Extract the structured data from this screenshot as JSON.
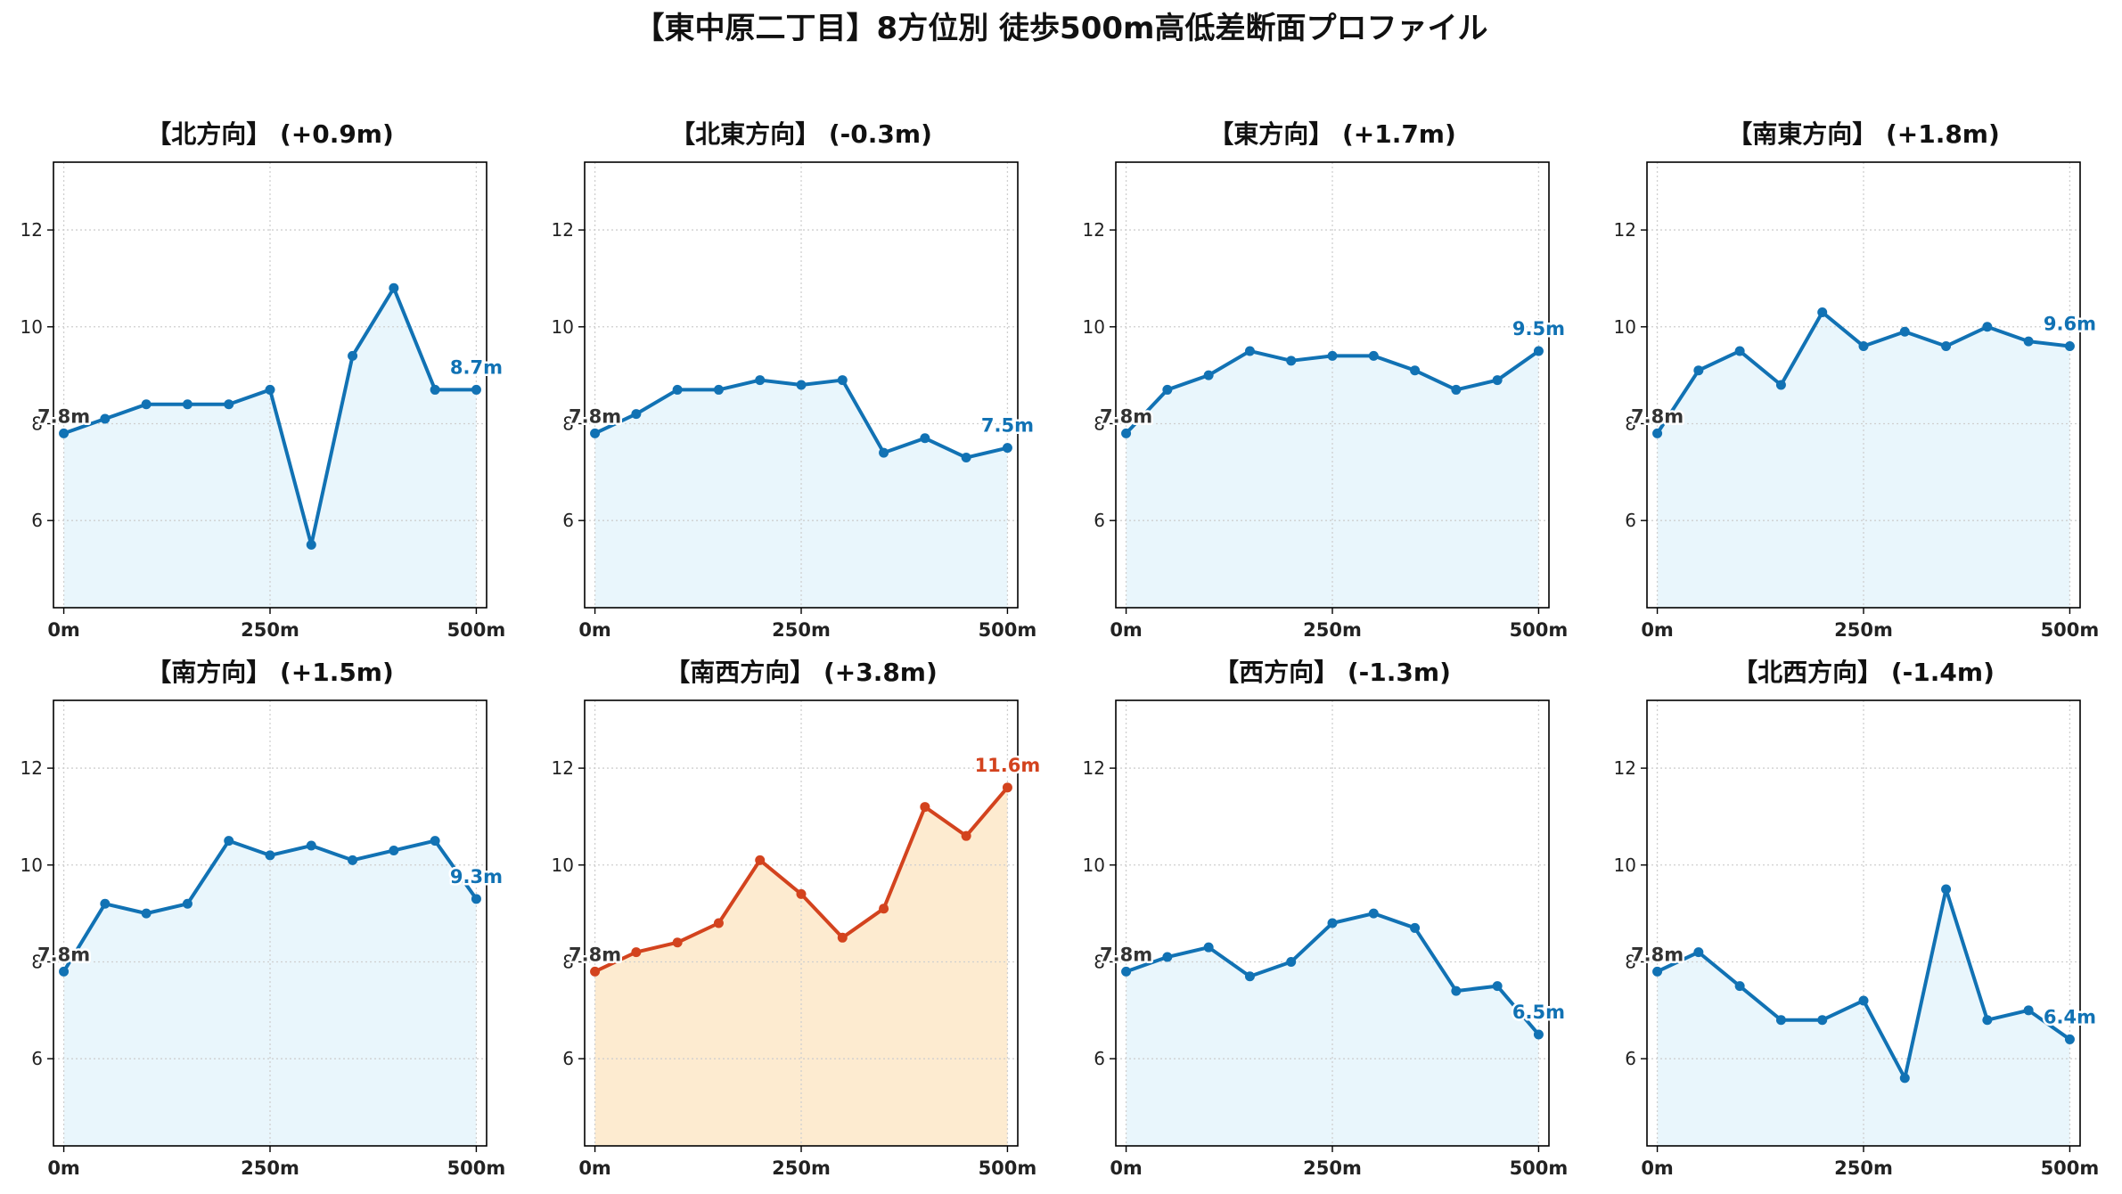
{
  "suptitle": "【東中原二丁目】8方位別 徒歩500m高低差断面プロファイル",
  "colors": {
    "line": "#1172b4",
    "fill": "#e9f6fc",
    "highlight_line": "#d3431e",
    "highlight_fill": "#fdebd0",
    "grid": "#cfcfcf",
    "start_label": "#333333"
  },
  "chart_data": [
    {
      "type": "area",
      "title": "【北方向】 (+0.9m)",
      "x": [
        0,
        50,
        100,
        150,
        200,
        250,
        300,
        350,
        400,
        450,
        500
      ],
      "values": [
        7.8,
        8.1,
        8.4,
        8.4,
        8.4,
        8.7,
        5.5,
        9.4,
        10.8,
        8.7,
        8.7
      ],
      "start_label": "7.8m",
      "end_label": "8.7m",
      "ylim": [
        4.2,
        13.4
      ],
      "yticks": [
        "6",
        "8",
        "10",
        "12"
      ],
      "xticks": [
        "0m",
        "250m",
        "500m"
      ],
      "grid": true,
      "highlight": false
    },
    {
      "type": "area",
      "title": "【北東方向】 (-0.3m)",
      "x": [
        0,
        50,
        100,
        150,
        200,
        250,
        300,
        350,
        400,
        450,
        500
      ],
      "values": [
        7.8,
        8.2,
        8.7,
        8.7,
        8.9,
        8.8,
        8.9,
        7.4,
        7.7,
        7.3,
        7.5
      ],
      "start_label": "7.8m",
      "end_label": "7.5m",
      "ylim": [
        4.2,
        13.4
      ],
      "yticks": [
        "6",
        "8",
        "10",
        "12"
      ],
      "xticks": [
        "0m",
        "250m",
        "500m"
      ],
      "grid": true,
      "highlight": false
    },
    {
      "type": "area",
      "title": "【東方向】 (+1.7m)",
      "x": [
        0,
        50,
        100,
        150,
        200,
        250,
        300,
        350,
        400,
        450,
        500
      ],
      "values": [
        7.8,
        8.7,
        9.0,
        9.5,
        9.3,
        9.4,
        9.4,
        9.1,
        8.7,
        8.9,
        9.5
      ],
      "start_label": "7.8m",
      "end_label": "9.5m",
      "ylim": [
        4.2,
        13.4
      ],
      "yticks": [
        "6",
        "8",
        "10",
        "12"
      ],
      "xticks": [
        "0m",
        "250m",
        "500m"
      ],
      "grid": true,
      "highlight": false
    },
    {
      "type": "area",
      "title": "【南東方向】 (+1.8m)",
      "x": [
        0,
        50,
        100,
        150,
        200,
        250,
        300,
        350,
        400,
        450,
        500
      ],
      "values": [
        7.8,
        9.1,
        9.5,
        8.8,
        10.3,
        9.6,
        9.9,
        9.6,
        10.0,
        9.7,
        9.6
      ],
      "start_label": "7.8m",
      "end_label": "9.6m",
      "ylim": [
        4.2,
        13.4
      ],
      "yticks": [
        "6",
        "8",
        "10",
        "12"
      ],
      "xticks": [
        "0m",
        "250m",
        "500m"
      ],
      "grid": true,
      "highlight": false
    },
    {
      "type": "area",
      "title": "【南方向】 (+1.5m)",
      "x": [
        0,
        50,
        100,
        150,
        200,
        250,
        300,
        350,
        400,
        450,
        500
      ],
      "values": [
        7.8,
        9.2,
        9.0,
        9.2,
        10.5,
        10.2,
        10.4,
        10.1,
        10.3,
        10.5,
        9.3
      ],
      "start_label": "7.8m",
      "end_label": "9.3m",
      "ylim": [
        4.2,
        13.4
      ],
      "yticks": [
        "6",
        "8",
        "10",
        "12"
      ],
      "xticks": [
        "0m",
        "250m",
        "500m"
      ],
      "grid": true,
      "highlight": false
    },
    {
      "type": "area",
      "title": "【南西方向】 (+3.8m)",
      "x": [
        0,
        50,
        100,
        150,
        200,
        250,
        300,
        350,
        400,
        450,
        500
      ],
      "values": [
        7.8,
        8.2,
        8.4,
        8.8,
        10.1,
        9.4,
        8.5,
        9.1,
        11.2,
        10.6,
        11.6
      ],
      "start_label": "7.8m",
      "end_label": "11.6m",
      "ylim": [
        4.2,
        13.4
      ],
      "yticks": [
        "6",
        "8",
        "10",
        "12"
      ],
      "xticks": [
        "0m",
        "250m",
        "500m"
      ],
      "grid": true,
      "highlight": true
    },
    {
      "type": "area",
      "title": "【西方向】 (-1.3m)",
      "x": [
        0,
        50,
        100,
        150,
        200,
        250,
        300,
        350,
        400,
        450,
        500
      ],
      "values": [
        7.8,
        8.1,
        8.3,
        7.7,
        8.0,
        8.8,
        9.0,
        8.7,
        7.4,
        7.5,
        6.5
      ],
      "start_label": "7.8m",
      "end_label": "6.5m",
      "ylim": [
        4.2,
        13.4
      ],
      "yticks": [
        "6",
        "8",
        "10",
        "12"
      ],
      "xticks": [
        "0m",
        "250m",
        "500m"
      ],
      "grid": true,
      "highlight": false
    },
    {
      "type": "area",
      "title": "【北西方向】 (-1.4m)",
      "x": [
        0,
        50,
        100,
        150,
        200,
        250,
        300,
        350,
        400,
        450,
        500
      ],
      "values": [
        7.8,
        8.2,
        7.5,
        6.8,
        6.8,
        7.2,
        5.6,
        9.5,
        6.8,
        7.0,
        6.4
      ],
      "start_label": "7.8m",
      "end_label": "6.4m",
      "ylim": [
        4.2,
        13.4
      ],
      "yticks": [
        "6",
        "8",
        "10",
        "12"
      ],
      "xticks": [
        "0m",
        "250m",
        "500m"
      ],
      "grid": true,
      "highlight": false
    }
  ]
}
